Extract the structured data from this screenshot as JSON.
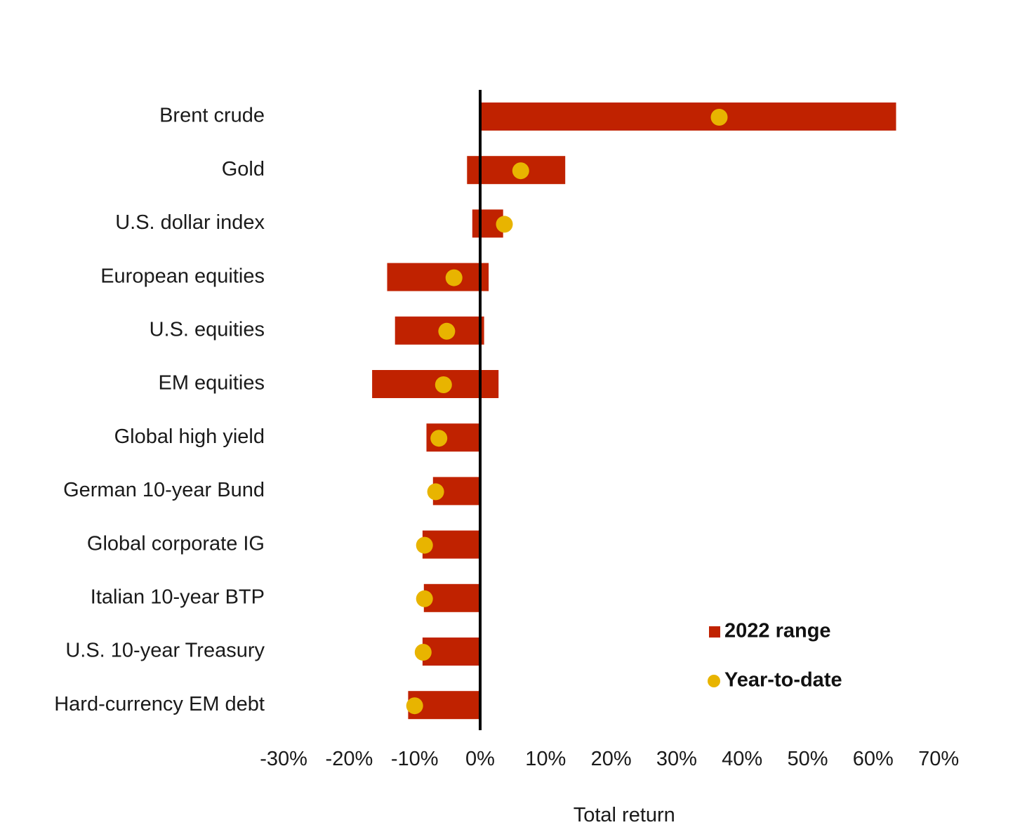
{
  "chart_data": {
    "type": "bar",
    "orientation": "horizontal",
    "title": "",
    "xlabel": "Total return",
    "ylabel": "",
    "xlim": [
      -30,
      70
    ],
    "x_tick_labels": [
      "-30%",
      "-20%",
      "-10%",
      "0%",
      "10%",
      "20%",
      "30%",
      "40%",
      "50%",
      "60%",
      "70%"
    ],
    "x_ticks": [
      -30,
      -20,
      -10,
      0,
      10,
      20,
      30,
      40,
      50,
      60,
      70
    ],
    "grid": false,
    "legend_placement": "bottom-right",
    "categories": [
      "Brent crude",
      "Gold",
      "U.S. dollar index",
      "European equities",
      "U.S. equities",
      "EM equities",
      "Global high yield",
      "German 10-year Bund",
      "Global corporate IG",
      "Italian 10-year BTP",
      "U.S. 10-year Treasury",
      "Hard-currency EM debt"
    ],
    "series": [
      {
        "name": "2022 range",
        "mark": "range-bar",
        "color": "#C02200",
        "low": [
          0,
          -2,
          -1.2,
          -14.2,
          -13,
          -16.5,
          -8.2,
          -7.2,
          -8.8,
          -8.6,
          -8.8,
          -11
        ],
        "high": [
          63.5,
          13,
          3.5,
          1.3,
          0.6,
          2.8,
          0,
          0,
          0,
          0,
          0,
          0
        ]
      },
      {
        "name": "Year-to-date",
        "mark": "dot",
        "color": "#E8B400",
        "values": [
          36.5,
          6.2,
          3.7,
          -4,
          -5.1,
          -5.6,
          -6.3,
          -6.8,
          -8.5,
          -8.5,
          -8.7,
          -10
        ]
      }
    ]
  }
}
